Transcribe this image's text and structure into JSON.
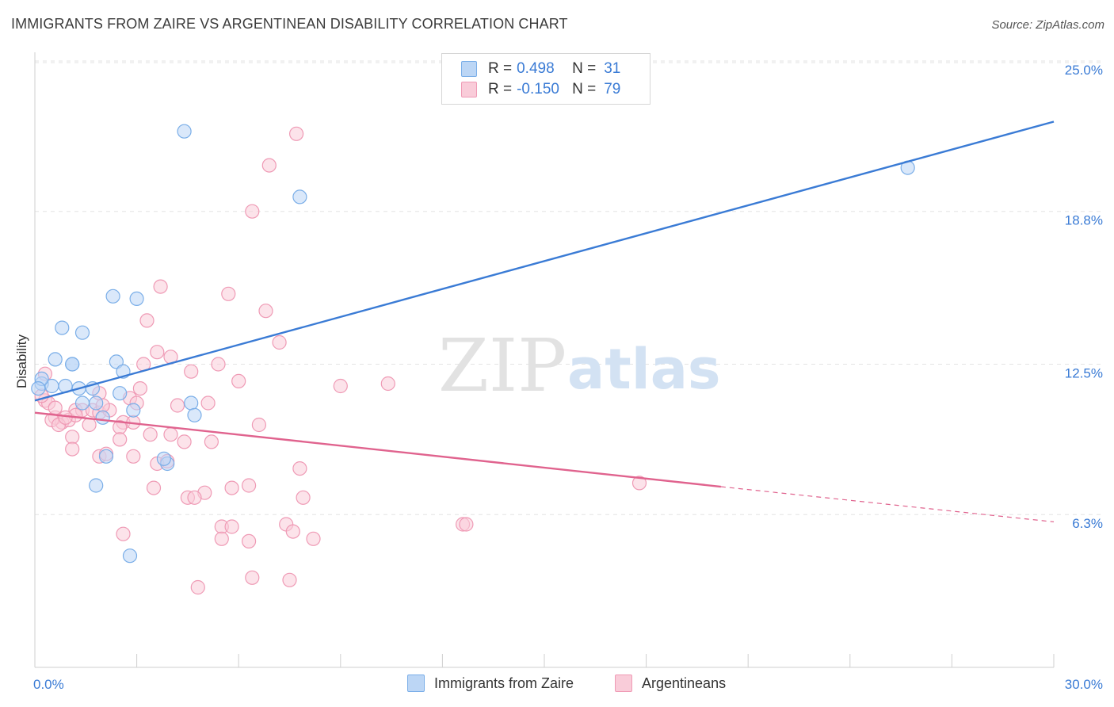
{
  "title": "IMMIGRANTS FROM ZAIRE VS ARGENTINEAN DISABILITY CORRELATION CHART",
  "source": "Source: ZipAtlas.com",
  "watermark": {
    "zip": "ZIP",
    "atlas": "atlas"
  },
  "legend": {
    "rows": [
      {
        "r_label": "R =",
        "r_value": "0.498",
        "n_label": "N =",
        "n_value": "31",
        "color": "#7aaee8",
        "fill": "#bcd6f5"
      },
      {
        "r_label": "R =",
        "r_value": "-0.150",
        "n_label": "N =",
        "n_value": "79",
        "color": "#ef9ab5",
        "fill": "#f9ccd9"
      }
    ]
  },
  "bottom_legend": [
    {
      "label": "Immigrants from Zaire",
      "color": "#7aaee8",
      "fill": "#bcd6f5"
    },
    {
      "label": "Argentineans",
      "color": "#ef9ab5",
      "fill": "#f9ccd9"
    }
  ],
  "chart_data": {
    "type": "scatter",
    "title": "IMMIGRANTS FROM ZAIRE VS ARGENTINEAN DISABILITY CORRELATION CHART",
    "xlabel": "",
    "ylabel": "Disability",
    "xlim": [
      0,
      30
    ],
    "ylim": [
      0,
      26
    ],
    "x_tick_labels": [
      {
        "value": 0,
        "label": "0.0%"
      },
      {
        "value": 30,
        "label": "30.0%"
      }
    ],
    "y_tick_labels": [
      {
        "value": 6.3,
        "label": "6.3%"
      },
      {
        "value": 12.5,
        "label": "12.5%"
      },
      {
        "value": 18.8,
        "label": "18.8%"
      },
      {
        "value": 25.0,
        "label": "25.0%"
      }
    ],
    "grid": true,
    "series": [
      {
        "name": "Immigrants from Zaire",
        "color": "#3a7bd5",
        "marker_fill": "#bcd6f5",
        "marker_stroke": "#7aaee8",
        "trend": {
          "x": [
            0,
            30
          ],
          "y": [
            11.0,
            22.5
          ],
          "dashed_from": null
        },
        "points": [
          [
            4.4,
            22.1
          ],
          [
            7.8,
            19.4
          ],
          [
            25.7,
            20.6
          ],
          [
            2.3,
            15.3
          ],
          [
            3.0,
            15.2
          ],
          [
            0.8,
            14.0
          ],
          [
            1.4,
            13.8
          ],
          [
            0.6,
            12.7
          ],
          [
            1.1,
            12.5
          ],
          [
            1.1,
            12.5
          ],
          [
            2.4,
            12.6
          ],
          [
            2.6,
            12.2
          ],
          [
            0.2,
            11.7
          ],
          [
            0.5,
            11.6
          ],
          [
            0.2,
            11.9
          ],
          [
            0.9,
            11.6
          ],
          [
            1.3,
            11.5
          ],
          [
            1.7,
            11.5
          ],
          [
            2.5,
            11.3
          ],
          [
            1.4,
            10.9
          ],
          [
            1.8,
            10.9
          ],
          [
            4.6,
            10.9
          ],
          [
            2.0,
            10.3
          ],
          [
            2.9,
            10.6
          ],
          [
            4.7,
            10.4
          ],
          [
            2.1,
            8.7
          ],
          [
            3.9,
            8.4
          ],
          [
            3.8,
            8.6
          ],
          [
            1.8,
            7.5
          ],
          [
            2.8,
            4.6
          ],
          [
            0.1,
            11.5
          ]
        ]
      },
      {
        "name": "Argentineans",
        "color": "#e0638e",
        "marker_fill": "#f9ccd9",
        "marker_stroke": "#ef9ab5",
        "trend": {
          "x": [
            0,
            20.2,
            30
          ],
          "y": [
            10.5,
            7.45,
            6.0
          ],
          "dashed_from": 20.2
        },
        "points": [
          [
            7.7,
            22.0
          ],
          [
            6.9,
            20.7
          ],
          [
            6.4,
            18.8
          ],
          [
            3.7,
            15.7
          ],
          [
            5.7,
            15.4
          ],
          [
            3.3,
            14.3
          ],
          [
            6.8,
            14.7
          ],
          [
            3.6,
            13.0
          ],
          [
            4.0,
            12.8
          ],
          [
            7.2,
            13.4
          ],
          [
            3.2,
            12.5
          ],
          [
            4.6,
            12.2
          ],
          [
            5.4,
            12.5
          ],
          [
            0.3,
            12.1
          ],
          [
            6.0,
            11.8
          ],
          [
            9.0,
            11.6
          ],
          [
            10.4,
            11.7
          ],
          [
            3.1,
            11.5
          ],
          [
            1.9,
            11.3
          ],
          [
            0.3,
            11.0
          ],
          [
            0.4,
            10.9
          ],
          [
            2.8,
            11.1
          ],
          [
            5.1,
            10.9
          ],
          [
            1.2,
            10.6
          ],
          [
            1.4,
            10.6
          ],
          [
            1.7,
            10.6
          ],
          [
            1.9,
            10.5
          ],
          [
            2.2,
            10.6
          ],
          [
            0.6,
            10.3
          ],
          [
            0.8,
            10.1
          ],
          [
            1.0,
            10.2
          ],
          [
            2.6,
            10.1
          ],
          [
            0.5,
            10.2
          ],
          [
            0.7,
            10.0
          ],
          [
            1.6,
            10.0
          ],
          [
            2.5,
            9.9
          ],
          [
            3.4,
            9.6
          ],
          [
            4.0,
            9.6
          ],
          [
            4.4,
            9.3
          ],
          [
            5.2,
            9.3
          ],
          [
            6.6,
            10.0
          ],
          [
            2.5,
            9.4
          ],
          [
            1.1,
            9.5
          ],
          [
            1.1,
            9.0
          ],
          [
            1.9,
            8.7
          ],
          [
            2.1,
            8.8
          ],
          [
            2.9,
            8.7
          ],
          [
            3.6,
            8.4
          ],
          [
            3.9,
            8.5
          ],
          [
            7.8,
            8.2
          ],
          [
            3.5,
            7.4
          ],
          [
            5.0,
            7.2
          ],
          [
            5.8,
            7.4
          ],
          [
            6.3,
            7.5
          ],
          [
            4.5,
            7.0
          ],
          [
            4.7,
            7.0
          ],
          [
            7.9,
            7.0
          ],
          [
            5.5,
            5.8
          ],
          [
            5.8,
            5.8
          ],
          [
            7.4,
            5.9
          ],
          [
            7.6,
            5.6
          ],
          [
            12.6,
            5.9
          ],
          [
            12.7,
            5.9
          ],
          [
            2.6,
            5.5
          ],
          [
            5.5,
            5.3
          ],
          [
            6.3,
            5.2
          ],
          [
            8.2,
            5.3
          ],
          [
            4.8,
            3.3
          ],
          [
            6.4,
            3.7
          ],
          [
            7.5,
            3.6
          ],
          [
            17.8,
            7.6
          ],
          [
            1.2,
            10.4
          ],
          [
            0.9,
            10.3
          ],
          [
            2.0,
            10.8
          ],
          [
            2.9,
            10.1
          ],
          [
            0.2,
            11.2
          ],
          [
            0.6,
            10.7
          ],
          [
            4.2,
            10.8
          ],
          [
            3.0,
            10.9
          ]
        ]
      }
    ]
  }
}
